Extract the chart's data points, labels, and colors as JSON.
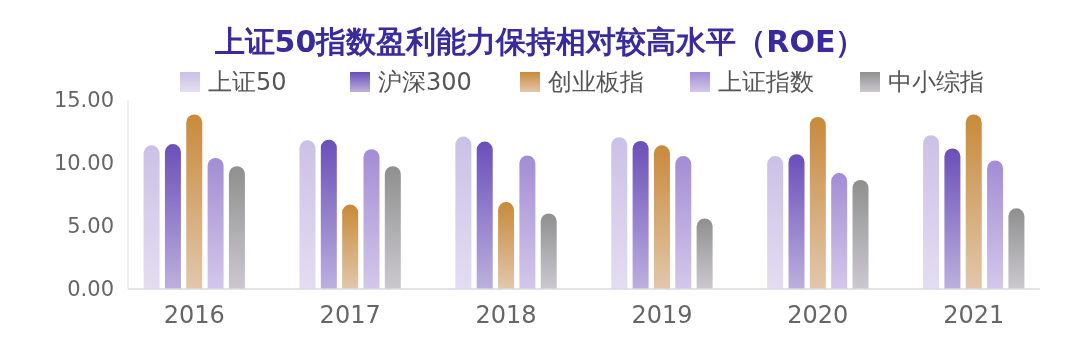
{
  "chart_data": {
    "type": "bar",
    "title": "上证50指数盈利能力保持相对较高水平（ROE）",
    "categories": [
      "2016",
      "2017",
      "2018",
      "2019",
      "2020",
      "2021"
    ],
    "series": [
      {
        "name": "上证50",
        "color": "#cbc1e6",
        "values": [
          11.4,
          11.8,
          12.1,
          12.05,
          10.55,
          12.2
        ]
      },
      {
        "name": "沪深300",
        "color": "#6a4fb8",
        "values": [
          11.5,
          11.85,
          11.7,
          11.75,
          10.7,
          11.15
        ]
      },
      {
        "name": "创业板指",
        "color": "#c88a3a",
        "values": [
          13.85,
          6.7,
          6.9,
          11.4,
          13.65,
          13.85
        ]
      },
      {
        "name": "上证指数",
        "color": "#a38cd4",
        "values": [
          10.4,
          11.1,
          10.6,
          10.55,
          9.2,
          10.2
        ]
      },
      {
        "name": "中小综指",
        "color": "#8f8f8f",
        "values": [
          9.75,
          9.75,
          6.0,
          5.6,
          8.65,
          6.4
        ]
      }
    ],
    "ylim": [
      0,
      15
    ],
    "yticks": [
      {
        "value": 0,
        "label": "0.00"
      },
      {
        "value": 5,
        "label": "5.00"
      },
      {
        "value": 10,
        "label": "10.00"
      },
      {
        "value": 15,
        "label": "15.00"
      }
    ],
    "legend": "top"
  }
}
